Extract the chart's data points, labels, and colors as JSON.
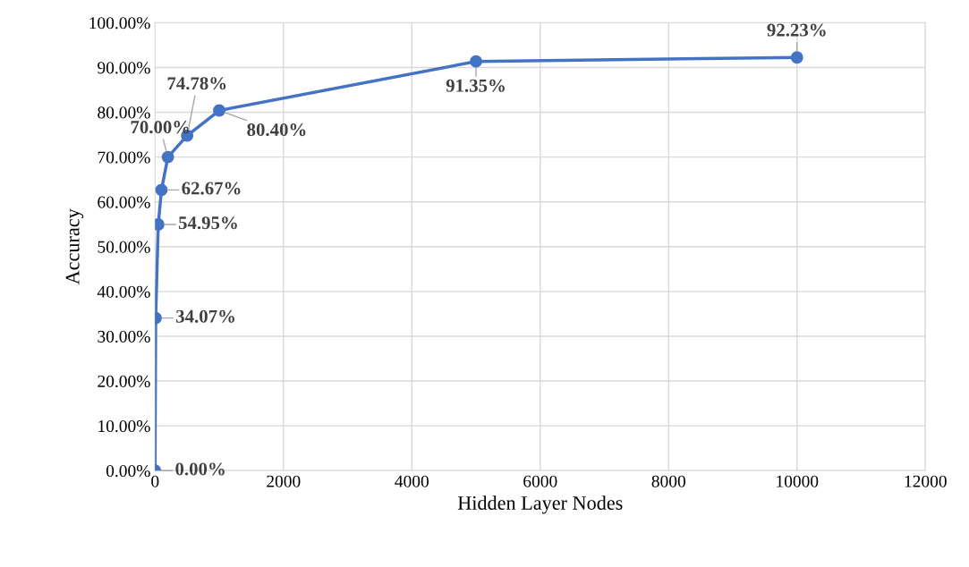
{
  "chart_data": {
    "type": "line",
    "xlabel": "Hidden Layer Nodes",
    "ylabel": "Accuracy",
    "x": [
      0,
      10,
      50,
      100,
      200,
      500,
      1000,
      5000,
      10000
    ],
    "series": [
      {
        "color": "#4472c4",
        "values": [
          0,
          34.07,
          54.95,
          62.67,
          70.0,
          74.78,
          80.4,
          91.35,
          92.23
        ],
        "value_labels": [
          "0.00%",
          "34.07%",
          "54.95%",
          "62.67%",
          "70.00%",
          "74.78%",
          "80.40%",
          "91.35%",
          "92.23%"
        ]
      }
    ],
    "xlim": [
      0,
      12000
    ],
    "xticks": [
      0,
      2000,
      4000,
      6000,
      8000,
      10000,
      12000
    ],
    "ylim": [
      0,
      100
    ],
    "yticks": [
      {
        "value": 0,
        "label": "0.00%"
      },
      {
        "value": 10,
        "label": "10.00%"
      },
      {
        "value": 20,
        "label": "20.00%"
      },
      {
        "value": 30,
        "label": "30.00%"
      },
      {
        "value": 40,
        "label": "40.00%"
      },
      {
        "value": 50,
        "label": "50.00%"
      },
      {
        "value": 60,
        "label": "60.00%"
      },
      {
        "value": 70,
        "label": "70.00%"
      },
      {
        "value": 80,
        "label": "80.00%"
      },
      {
        "value": 90,
        "label": "90.00%"
      },
      {
        "value": 100,
        "label": "100.00%"
      }
    ],
    "grid": true,
    "marker": "circle",
    "line_style": "solid"
  }
}
